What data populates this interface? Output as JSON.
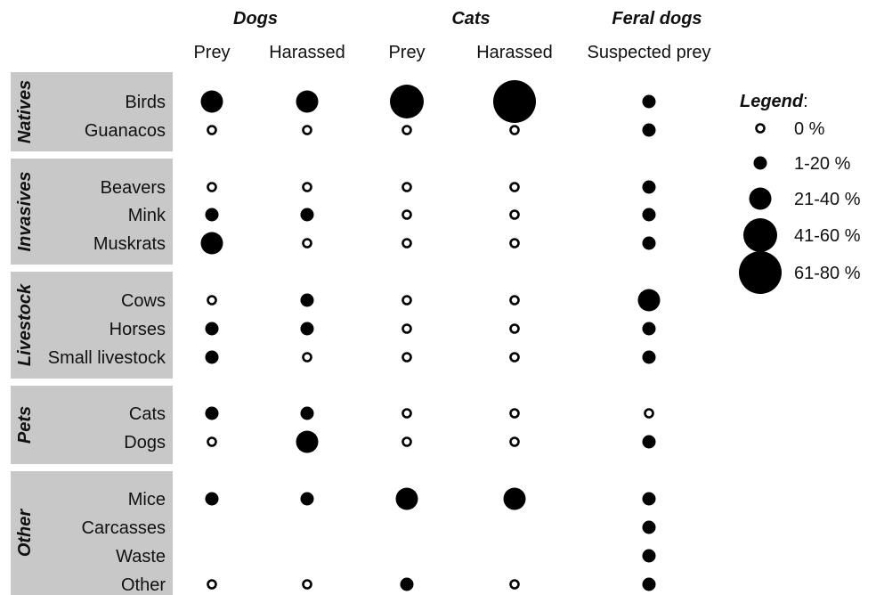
{
  "chart_data": {
    "type": "bubble-matrix",
    "groups": [
      {
        "title": "Dogs",
        "columns": [
          "Prey",
          "Harassed"
        ]
      },
      {
        "title": "Cats",
        "columns": [
          "Prey",
          "Harassed"
        ]
      },
      {
        "title": "Feral dogs",
        "columns": [
          "Suspected prey"
        ]
      }
    ],
    "categories": [
      {
        "name": "Natives",
        "rows": [
          {
            "label": "Birds",
            "values": [
              2,
              2,
              3,
              4,
              1
            ]
          },
          {
            "label": "Guanacos",
            "values": [
              0,
              0,
              0,
              0,
              1
            ]
          }
        ]
      },
      {
        "name": "Invasives",
        "rows": [
          {
            "label": "Beavers",
            "values": [
              0,
              0,
              0,
              0,
              1
            ]
          },
          {
            "label": "Mink",
            "values": [
              1,
              1,
              0,
              0,
              1
            ]
          },
          {
            "label": "Muskrats",
            "values": [
              2,
              0,
              0,
              0,
              1
            ]
          }
        ]
      },
      {
        "name": "Livestock",
        "rows": [
          {
            "label": "Cows",
            "values": [
              0,
              1,
              0,
              0,
              2
            ]
          },
          {
            "label": "Horses",
            "values": [
              1,
              1,
              0,
              0,
              1
            ]
          },
          {
            "label": "Small livestock",
            "values": [
              1,
              0,
              0,
              0,
              1
            ]
          }
        ]
      },
      {
        "name": "Pets",
        "rows": [
          {
            "label": "Cats",
            "values": [
              1,
              1,
              0,
              0,
              0
            ]
          },
          {
            "label": "Dogs",
            "values": [
              0,
              2,
              0,
              0,
              1
            ]
          }
        ]
      },
      {
        "name": "Other",
        "rows": [
          {
            "label": "Mice",
            "values": [
              1,
              1,
              2,
              2,
              1
            ]
          },
          {
            "label": "Carcasses",
            "values": [
              null,
              null,
              null,
              null,
              1
            ]
          },
          {
            "label": "Waste",
            "values": [
              null,
              null,
              null,
              null,
              1
            ]
          },
          {
            "label": "Other",
            "values": [
              0,
              0,
              1,
              0,
              1
            ]
          }
        ]
      }
    ],
    "legend": {
      "title": "Legend",
      "title_suffix": ":",
      "placement": "right",
      "levels": [
        "0 %",
        "1-20 %",
        "21-40 %",
        "41-60 %",
        "61-80 %"
      ]
    },
    "colors": {
      "fill": "#000000",
      "category_band": "#c8c8c8",
      "text": "#111111"
    }
  }
}
